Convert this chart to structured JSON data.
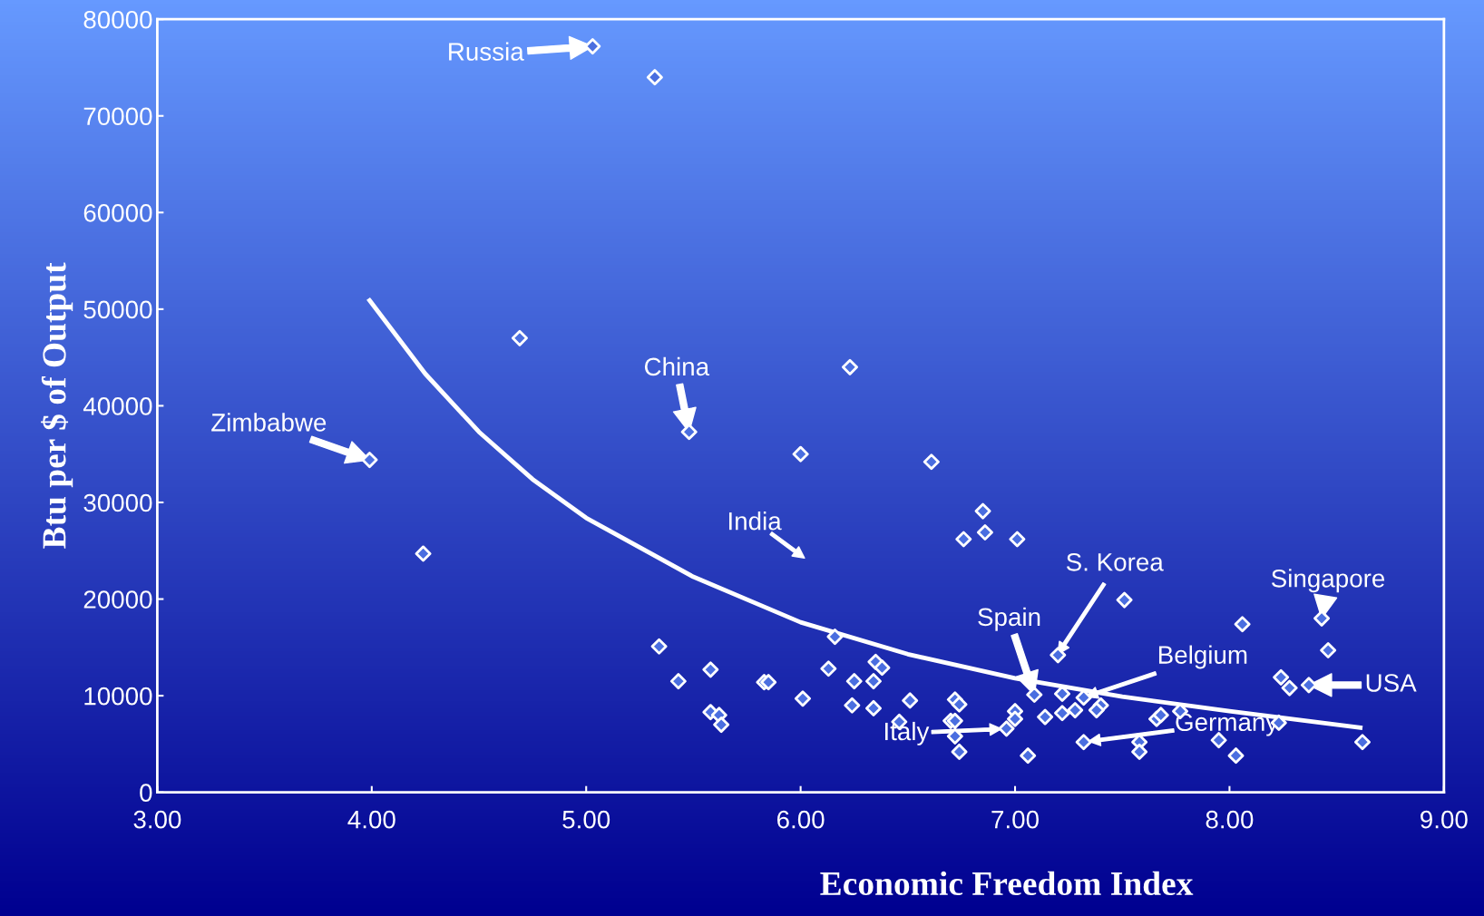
{
  "chart_data": {
    "type": "scatter",
    "xlabel": "Economic Freedom Index",
    "ylabel": "Btu per $ of Output",
    "xlim": [
      3,
      9
    ],
    "ylim": [
      0,
      80000
    ],
    "xticks": [
      {
        "value": 3,
        "label": "3.00"
      },
      {
        "value": 4,
        "label": "4.00"
      },
      {
        "value": 5,
        "label": "5.00"
      },
      {
        "value": 6,
        "label": "6.00"
      },
      {
        "value": 7,
        "label": "7.00"
      },
      {
        "value": 8,
        "label": "8.00"
      },
      {
        "value": 9,
        "label": "9.00"
      }
    ],
    "yticks": [
      0,
      10000,
      20000,
      30000,
      40000,
      50000,
      60000,
      70000,
      80000
    ],
    "grid": false,
    "marker": "diamond",
    "series": [
      {
        "color": "#4a6ee0",
        "x": [
          5.03,
          5.32,
          4.69,
          6.23,
          5.48,
          3.99,
          6.0,
          6.61,
          4.24,
          6.85,
          6.76,
          6.86,
          7.01,
          7.51,
          8.06,
          8.43,
          8.46,
          7.2,
          5.34,
          6.16,
          5.58,
          5.43,
          5.83,
          5.85,
          6.13,
          6.25,
          6.34,
          6.35,
          6.38,
          6.01,
          6.24,
          6.34,
          6.51,
          6.46,
          5.58,
          5.62,
          5.63,
          6.72,
          6.74,
          6.7,
          6.72,
          6.72,
          6.74,
          7.0,
          7.0,
          6.96,
          7.06,
          7.09,
          7.14,
          7.22,
          7.22,
          7.28,
          7.32,
          7.4,
          7.38,
          7.32,
          7.58,
          7.58,
          7.66,
          7.68,
          7.77,
          7.95,
          8.03,
          8.23,
          8.24,
          8.28,
          8.37,
          8.62
        ],
        "values": [
          77200,
          74000,
          47000,
          44000,
          37300,
          34400,
          35000,
          34200,
          24700,
          29100,
          26200,
          26900,
          26200,
          19900,
          17400,
          18000,
          14700,
          14200,
          15100,
          16100,
          12700,
          11500,
          11400,
          11400,
          12800,
          11500,
          11500,
          13500,
          12900,
          9700,
          9000,
          8700,
          9500,
          7300,
          8300,
          8000,
          7000,
          9600,
          9100,
          7400,
          7400,
          5800,
          4200,
          8400,
          7600,
          6600,
          3800,
          10100,
          7800,
          10200,
          8200,
          8500,
          9800,
          9000,
          8500,
          5200,
          5200,
          4200,
          7600,
          8000,
          8400,
          5400,
          3800,
          7200,
          11900,
          10800,
          11100,
          5200
        ]
      },
      {
        "type": "line",
        "color": "#ffffff",
        "marker": "none",
        "x": [
          3.99,
          4.25,
          4.5,
          4.75,
          5.0,
          5.5,
          6.0,
          6.5,
          7.0,
          7.5,
          8.0,
          8.61
        ],
        "values": [
          50900,
          43300,
          37300,
          32400,
          28400,
          22300,
          17600,
          14300,
          11800,
          9900,
          8400,
          6700
        ]
      }
    ],
    "annotations": [
      {
        "text": "Russia",
        "x": 5.03,
        "y": 77200
      },
      {
        "text": "China",
        "x": 5.48,
        "y": 37300
      },
      {
        "text": "Zimbabwe",
        "x": 3.99,
        "y": 34400
      },
      "India",
      "S. Korea",
      {
        "text": "Spain",
        "x": 7.09,
        "y": 10100
      },
      {
        "text": "Singapore",
        "x": 8.43,
        "y": 18000
      },
      "Belgium",
      {
        "text": "USA",
        "x": 8.37,
        "y": 11100
      },
      "Italy",
      "Germany"
    ]
  }
}
